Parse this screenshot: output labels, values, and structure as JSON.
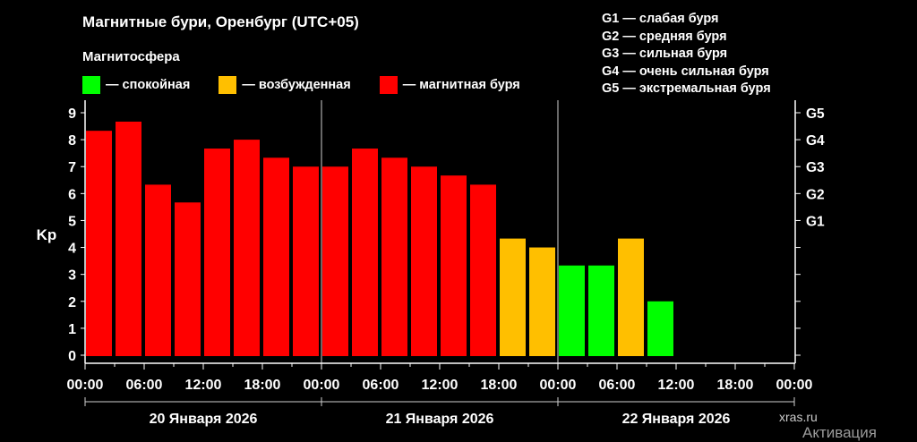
{
  "legend": {
    "title": "Магнитосфера",
    "items": [
      {
        "label": "— спокойная",
        "color": "#00ff00"
      },
      {
        "label": "— возбужденная",
        "color": "#ffbf00"
      },
      {
        "label": "— магнитная буря",
        "color": "#ff0000"
      }
    ]
  },
  "g_legend": [
    "G1 — слабая буря",
    "G2 — средняя буря",
    "G3 — сильная буря",
    "G4 — очень сильная буря",
    "G5 — экстремальная буря"
  ],
  "watermark": "xras.ru",
  "activation_text": "Активация",
  "chart_data": {
    "type": "bar",
    "title": "Магнитные бури, Оренбург (UTC+05)",
    "ylabel": "Kp",
    "ylim": [
      0,
      9
    ],
    "yticks": [
      0,
      1,
      2,
      3,
      4,
      5,
      6,
      7,
      8,
      9
    ],
    "right_ticks": [
      {
        "value": 5,
        "label": "G1"
      },
      {
        "value": 6,
        "label": "G2"
      },
      {
        "value": 7,
        "label": "G3"
      },
      {
        "value": 8,
        "label": "G4"
      },
      {
        "value": 9,
        "label": "G5"
      }
    ],
    "x_tick_labels": [
      "00:00",
      "06:00",
      "12:00",
      "18:00",
      "00:00",
      "06:00",
      "12:00",
      "18:00",
      "00:00",
      "06:00",
      "12:00",
      "18:00",
      "00:00"
    ],
    "day_labels": [
      "20 Января 2026",
      "21 Января 2026",
      "22 Января 2026"
    ],
    "interval_hours": 3,
    "values": [
      8.33,
      8.67,
      6.33,
      5.67,
      7.67,
      8.0,
      7.33,
      7.0,
      7.0,
      7.67,
      7.33,
      7.0,
      6.67,
      6.33,
      4.33,
      4.0,
      3.33,
      3.33,
      4.33,
      2.0
    ],
    "levels": [
      "storm",
      "storm",
      "storm",
      "storm",
      "storm",
      "storm",
      "storm",
      "storm",
      "storm",
      "storm",
      "storm",
      "storm",
      "storm",
      "storm",
      "active",
      "active",
      "quiet",
      "quiet",
      "active",
      "quiet"
    ],
    "level_colors": {
      "quiet": "#00ff00",
      "active": "#ffbf00",
      "storm": "#ff0000"
    }
  }
}
